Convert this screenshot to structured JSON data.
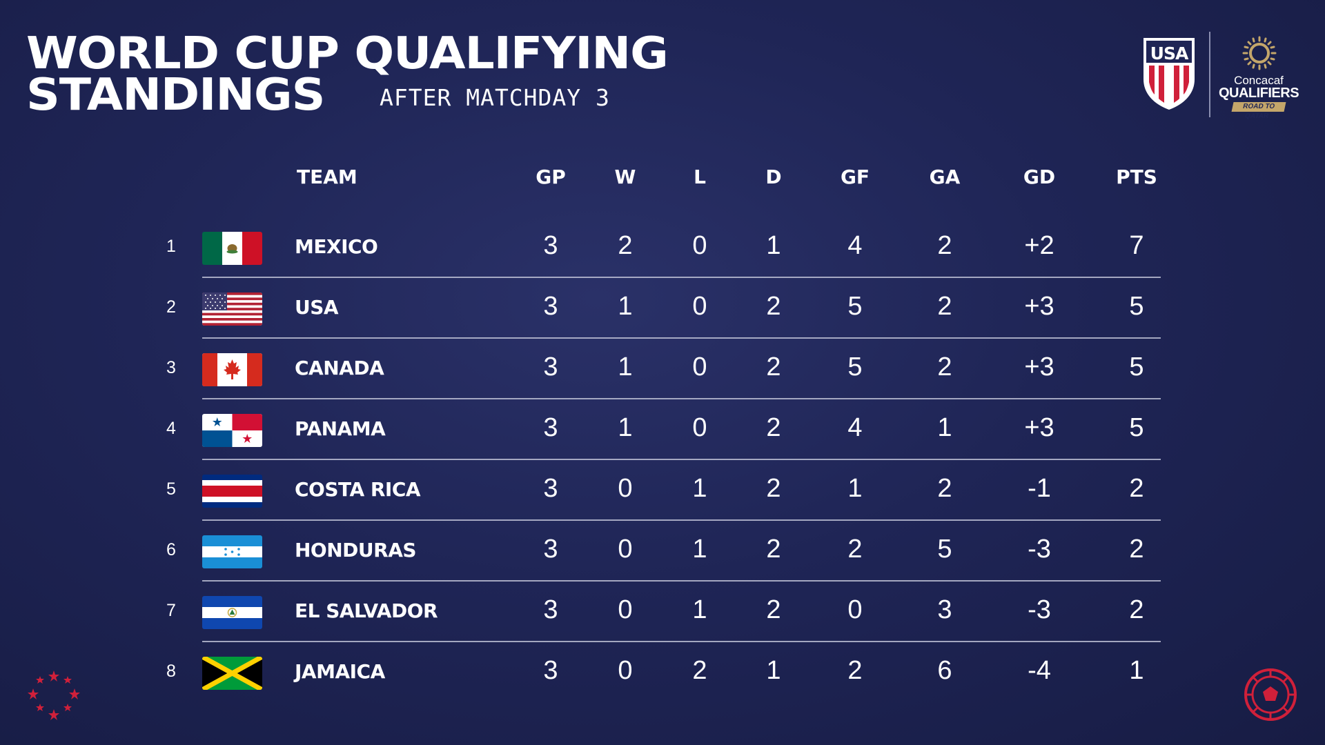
{
  "header": {
    "title_line1": "WORLD CUP QUALIFYING",
    "title_line2": "STANDINGS",
    "subtitle": "AFTER MATCHDAY 3"
  },
  "logos": {
    "usa_text": "USA",
    "concacaf_brand": "Concacaf",
    "concacaf_name": "QUALIFIERS",
    "concacaf_tagline": "ROAD TO QATAR"
  },
  "columns": {
    "team": "TEAM",
    "gp": "GP",
    "w": "W",
    "l": "L",
    "d": "D",
    "gf": "GF",
    "ga": "GA",
    "gd": "GD",
    "pts": "PTS"
  },
  "rows": [
    {
      "rank": "1",
      "team": "MEXICO",
      "flag": "mexico-flag-icon",
      "gp": "3",
      "w": "2",
      "l": "0",
      "d": "1",
      "gf": "4",
      "ga": "2",
      "gd": "+2",
      "pts": "7"
    },
    {
      "rank": "2",
      "team": "USA",
      "flag": "usa-flag-icon",
      "gp": "3",
      "w": "1",
      "l": "0",
      "d": "2",
      "gf": "5",
      "ga": "2",
      "gd": "+3",
      "pts": "5"
    },
    {
      "rank": "3",
      "team": "CANADA",
      "flag": "canada-flag-icon",
      "gp": "3",
      "w": "1",
      "l": "0",
      "d": "2",
      "gf": "5",
      "ga": "2",
      "gd": "+3",
      "pts": "5"
    },
    {
      "rank": "4",
      "team": "PANAMA",
      "flag": "panama-flag-icon",
      "gp": "3",
      "w": "1",
      "l": "0",
      "d": "2",
      "gf": "4",
      "ga": "1",
      "gd": "+3",
      "pts": "5"
    },
    {
      "rank": "5",
      "team": "COSTA RICA",
      "flag": "costa-rica-flag-icon",
      "gp": "3",
      "w": "0",
      "l": "1",
      "d": "2",
      "gf": "1",
      "ga": "2",
      "gd": "-1",
      "pts": "2"
    },
    {
      "rank": "6",
      "team": "HONDURAS",
      "flag": "honduras-flag-icon",
      "gp": "3",
      "w": "0",
      "l": "1",
      "d": "2",
      "gf": "2",
      "ga": "5",
      "gd": "-3",
      "pts": "2"
    },
    {
      "rank": "7",
      "team": "EL SALVADOR",
      "flag": "el-salvador-flag-icon",
      "gp": "3",
      "w": "0",
      "l": "1",
      "d": "2",
      "gf": "0",
      "ga": "3",
      "gd": "-3",
      "pts": "2"
    },
    {
      "rank": "8",
      "team": "JAMAICA",
      "flag": "jamaica-flag-icon",
      "gp": "3",
      "w": "0",
      "l": "2",
      "d": "1",
      "gf": "2",
      "ga": "6",
      "gd": "-4",
      "pts": "1"
    }
  ],
  "colors": {
    "background": "#1f2556",
    "accent_red": "#d0203a",
    "accent_gold": "#c4a66a",
    "text": "#ffffff"
  }
}
